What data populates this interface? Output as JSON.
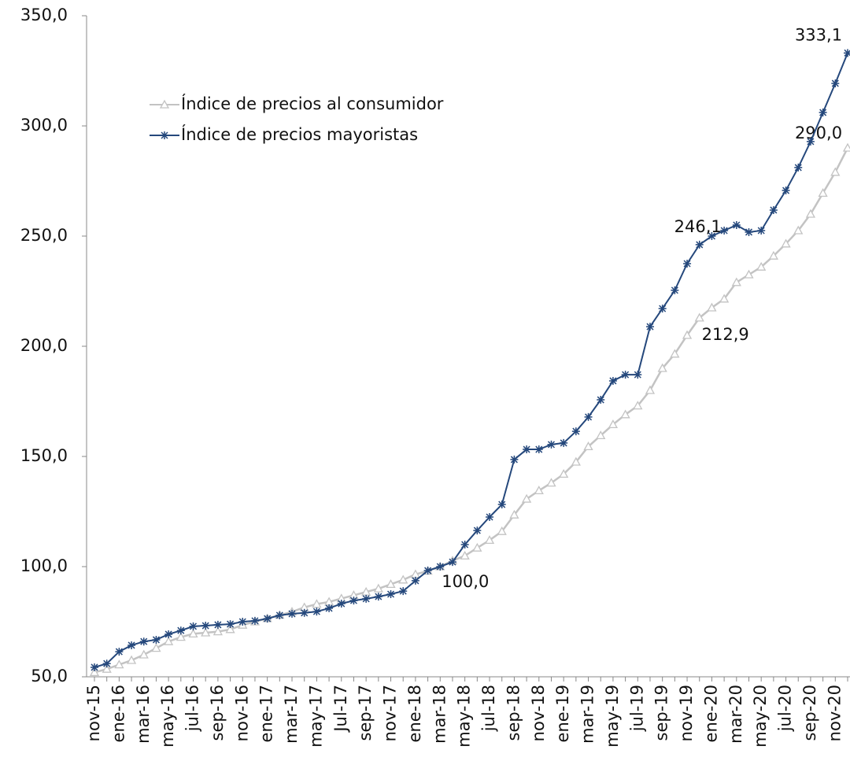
{
  "chart_data": {
    "type": "line",
    "categories": [
      "nov-15",
      null,
      "ene-16",
      null,
      "mar-16",
      null,
      "may-16",
      null,
      "jul-16",
      null,
      "sep-16",
      null,
      "nov-16",
      null,
      "ene-17",
      null,
      "mar-17",
      null,
      "may-17",
      null,
      "Jul-17",
      null,
      "sep-17",
      null,
      "nov-17",
      null,
      "ene-18",
      null,
      "mar-18",
      null,
      "may-18",
      null,
      "jul-18",
      null,
      "sep-18",
      null,
      "nov-18",
      null,
      "ene-19",
      null,
      "mar-19",
      null,
      "may-19",
      null,
      "jul-19",
      null,
      "sep-19",
      null,
      "nov-19",
      null,
      "ene-20",
      null,
      "mar-20",
      null,
      "may-20",
      null,
      "jul-20",
      null,
      "sep-20",
      null,
      "nov-20",
      null
    ],
    "series": [
      {
        "name": "Índice de precios al consumidor",
        "color": "#c3c3c3",
        "marker": "triangle",
        "values": [
          52,
          53.5,
          55.5,
          57.5,
          60,
          63,
          66,
          68,
          69.5,
          70,
          70.5,
          71.5,
          73.5,
          75,
          76.5,
          78,
          79.5,
          81.5,
          83,
          84,
          85.5,
          87,
          88.5,
          90,
          92,
          94,
          96.5,
          98,
          100,
          102.7,
          104.9,
          108.5,
          112,
          116,
          123.5,
          130.7,
          134.5,
          138,
          142,
          147.5,
          154.5,
          159.5,
          164.5,
          169,
          173,
          180,
          190,
          196.5,
          205,
          212.9,
          217.5,
          221.5,
          229,
          232.5,
          236,
          241,
          246.5,
          252.5,
          260,
          269.5,
          279,
          290
        ],
        "value_labels": [
          null,
          null,
          null,
          null,
          null,
          null,
          null,
          null,
          null,
          null,
          null,
          null,
          null,
          null,
          null,
          null,
          null,
          null,
          null,
          null,
          null,
          null,
          null,
          null,
          null,
          null,
          null,
          null,
          null,
          null,
          null,
          null,
          null,
          null,
          null,
          null,
          null,
          null,
          null,
          null,
          null,
          null,
          null,
          null,
          null,
          null,
          null,
          null,
          null,
          "212,9",
          null,
          null,
          null,
          null,
          null,
          null,
          null,
          null,
          null,
          null,
          null,
          "290,0"
        ]
      },
      {
        "name": "Índice de precios mayoristas",
        "color": "#25487c",
        "marker": "star",
        "values": [
          54.3,
          56,
          61.4,
          64.3,
          66,
          66.8,
          69.3,
          71,
          72.9,
          73.2,
          73.6,
          73.9,
          75,
          75.4,
          76.4,
          77.9,
          78.6,
          79,
          79.6,
          81.1,
          83.2,
          84.6,
          85.4,
          86.4,
          87.5,
          88.9,
          93.6,
          98.2,
          100,
          102.1,
          110,
          116.4,
          122.5,
          128.2,
          148.6,
          153.2,
          153.2,
          155.4,
          156.1,
          161.4,
          167.9,
          175.7,
          184.3,
          187.1,
          187.1,
          208.9,
          217.1,
          225.4,
          237.5,
          246.1,
          250,
          252.5,
          255,
          251.8,
          252.5,
          261.8,
          270.7,
          281.1,
          292.9,
          306.1,
          319.3,
          333.1
        ],
        "value_labels": [
          null,
          null,
          null,
          null,
          null,
          null,
          null,
          null,
          null,
          null,
          null,
          null,
          null,
          null,
          null,
          null,
          null,
          null,
          null,
          null,
          null,
          null,
          null,
          null,
          null,
          null,
          null,
          null,
          "100,0",
          null,
          null,
          null,
          null,
          null,
          null,
          null,
          null,
          null,
          null,
          null,
          null,
          null,
          null,
          null,
          null,
          null,
          null,
          null,
          null,
          "246,1",
          null,
          null,
          null,
          null,
          null,
          null,
          null,
          null,
          null,
          null,
          null,
          "333,1"
        ]
      }
    ],
    "ylim": [
      50,
      350
    ],
    "yticks": [
      {
        "value": 50,
        "label": "50,0"
      },
      {
        "value": 100,
        "label": "100,0"
      },
      {
        "value": 150,
        "label": "150,0"
      },
      {
        "value": 200,
        "label": "200,0"
      },
      {
        "value": 250,
        "label": "250,0"
      },
      {
        "value": 300,
        "label": "300,0"
      },
      {
        "value": 350,
        "label": "350,0"
      }
    ],
    "legend": "upper-left"
  }
}
